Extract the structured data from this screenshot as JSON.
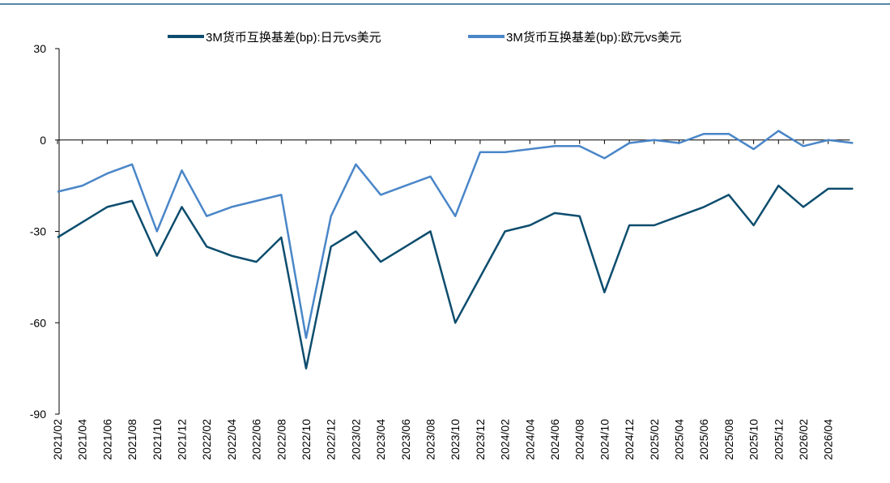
{
  "chart_data": {
    "type": "line",
    "categories": [
      "2021/02",
      "2021/04",
      "2021/06",
      "2021/08",
      "2021/10",
      "2021/12",
      "2022/02",
      "2022/04",
      "2022/06",
      "2022/08",
      "2022/10",
      "2022/12",
      "2023/02",
      "2023/04",
      "2023/06",
      "2023/08",
      "2023/10",
      "2023/12",
      "2024/02",
      "2024/04",
      "2024/06",
      "2024/08",
      "2024/10",
      "2024/12",
      "2025/02",
      "2025/04",
      "2025/06",
      "2025/08",
      "2025/10",
      "2025/12",
      "2026/02",
      "2026/04",
      null
    ],
    "series": [
      {
        "name": "3M货币互换基差(bp):日元vs美元",
        "color": "#0d4d6e",
        "values": [
          -32,
          -27,
          -22,
          -20,
          -38,
          -22,
          -35,
          -38,
          -40,
          -32,
          -75,
          -35,
          -30,
          -40,
          -35,
          -30,
          -60,
          -45,
          -30,
          -28,
          -24,
          -25,
          -50,
          -28,
          -28,
          -25,
          -22,
          -18,
          -28,
          -15,
          -22,
          -16,
          -16
        ]
      },
      {
        "name": "3M货币互换基差(bp):欧元vs美元",
        "color": "#4a86c8",
        "values": [
          -17,
          -15,
          -11,
          -8,
          -30,
          -10,
          -25,
          -22,
          -20,
          -18,
          -65,
          -25,
          -8,
          -18,
          -15,
          -12,
          -25,
          -4,
          -4,
          -3,
          -2,
          -2,
          -6,
          -1,
          0,
          -1,
          2,
          2,
          -3,
          3,
          -2,
          0,
          -1
        ]
      }
    ],
    "ylim": [
      -90,
      30
    ],
    "yticks": [
      -90,
      -60,
      -30,
      0,
      30
    ]
  }
}
